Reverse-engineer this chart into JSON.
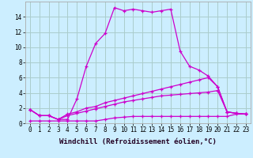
{
  "xlabel": "Windchill (Refroidissement éolien,°C)",
  "background_color": "#cceeff",
  "line_color": "#cc00cc",
  "grid_color": "#aacccc",
  "hours": [
    0,
    1,
    2,
    3,
    4,
    5,
    6,
    7,
    8,
    9,
    10,
    11,
    12,
    13,
    14,
    15,
    16,
    17,
    18,
    19,
    20,
    21,
    22,
    23
  ],
  "series1": [
    1.8,
    1.0,
    1.0,
    0.5,
    0.5,
    3.2,
    7.5,
    10.5,
    11.8,
    15.2,
    14.8,
    15.0,
    14.8,
    14.6,
    14.8,
    15.0,
    9.5,
    7.5,
    7.0,
    6.2,
    4.8,
    1.5,
    1.3,
    1.2
  ],
  "series2": [
    1.8,
    1.0,
    1.0,
    0.5,
    1.2,
    1.5,
    2.0,
    2.2,
    2.7,
    3.0,
    3.3,
    3.6,
    3.9,
    4.2,
    4.5,
    4.8,
    5.1,
    5.4,
    5.7,
    6.0,
    4.8,
    1.5,
    1.3,
    1.2
  ],
  "series3": [
    1.8,
    1.0,
    1.0,
    0.5,
    1.0,
    1.3,
    1.6,
    1.9,
    2.2,
    2.5,
    2.8,
    3.0,
    3.2,
    3.4,
    3.6,
    3.7,
    3.8,
    3.9,
    4.0,
    4.1,
    4.3,
    1.5,
    1.3,
    1.2
  ],
  "series4": [
    0.3,
    0.3,
    0.3,
    0.3,
    0.3,
    0.3,
    0.3,
    0.3,
    0.5,
    0.7,
    0.8,
    0.9,
    0.9,
    0.9,
    0.9,
    0.9,
    0.9,
    0.9,
    0.9,
    0.9,
    0.9,
    0.9,
    1.2,
    1.2
  ],
  "ylim": [
    0,
    16
  ],
  "yticks": [
    0,
    2,
    4,
    6,
    8,
    10,
    12,
    14
  ],
  "tick_fontsize": 5.5,
  "xlabel_fontsize": 6.5
}
